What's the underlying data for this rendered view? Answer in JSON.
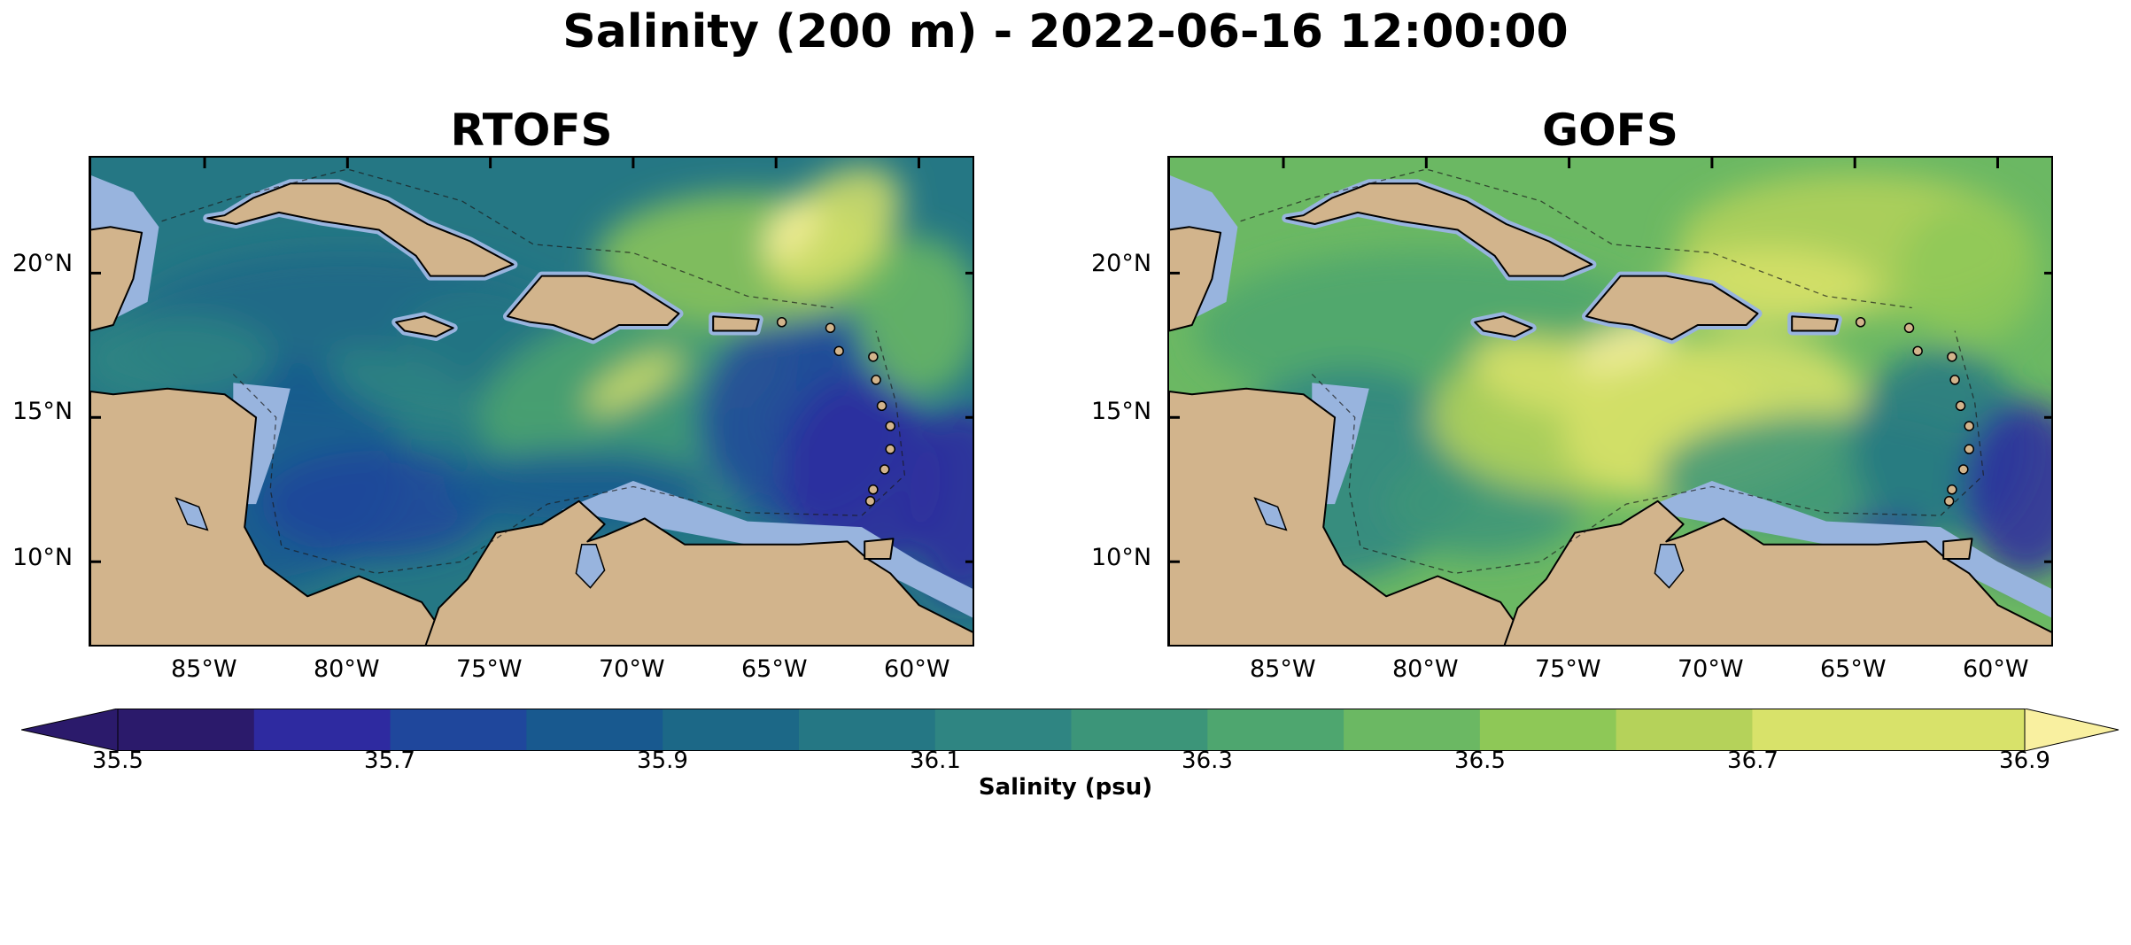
{
  "figure": {
    "suptitle": "Salinity (200 m) - 2022-06-16 12:00:00"
  },
  "panels": [
    {
      "title": "RTOFS",
      "model": "rtofs"
    },
    {
      "title": "GOFS",
      "model": "gofs"
    }
  ],
  "axes": {
    "lat_labels": [
      "20°N",
      "15°N",
      "10°N"
    ],
    "lon_labels": [
      "85°W",
      "80°W",
      "75°W",
      "70°W",
      "65°W",
      "60°W"
    ],
    "lon_range": [
      -89,
      -58
    ],
    "lat_range": [
      7,
      24
    ]
  },
  "colors": {
    "land": "#d2b48c",
    "shelf": "#98b4de",
    "coast": "#000000",
    "colormap": [
      "#2b1a6b",
      "#2e2aa0",
      "#1f479c",
      "#18598f",
      "#1c6887",
      "#257784",
      "#2f8582",
      "#3c9579",
      "#4ea66f",
      "#6bb863",
      "#8ec857",
      "#b5d25a",
      "#d8e26a",
      "#f9f0a0"
    ]
  },
  "colorbar": {
    "label": "Salinity (psu)",
    "ticks": [
      "35.5",
      "35.7",
      "35.9",
      "36.1",
      "36.3",
      "36.5",
      "36.7",
      "36.9"
    ],
    "min": 35.5,
    "max": 36.9,
    "step": 0.1,
    "extend": "both"
  }
}
